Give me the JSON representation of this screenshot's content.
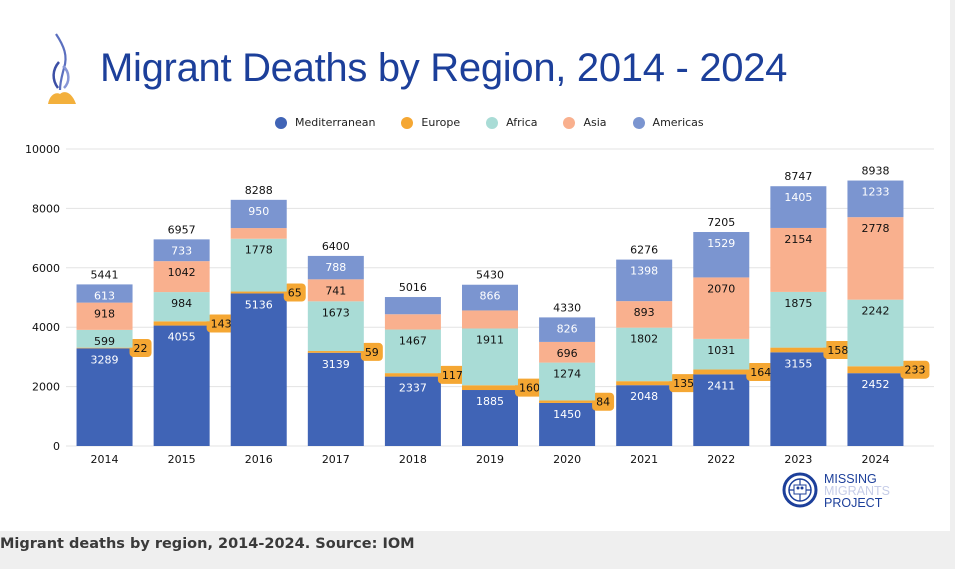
{
  "caption": "Migrant deaths by region, 2014-2024. Source: IOM",
  "logo": {
    "name": "MISSING MIGRANTS PROJECT",
    "lines": [
      "MISSING",
      "MIGRANTS",
      "PROJECT"
    ]
  },
  "colors": {
    "Mediterranean": "#4064b6",
    "Europe": "#f5a733",
    "Africa": "#a9dcd6",
    "Asia": "#f9b08e",
    "Americas": "#7b95d0",
    "title": "#1c3f9a"
  },
  "chart_data": {
    "type": "bar",
    "stacked": true,
    "title": "Migrant Deaths by Region, 2014 - 2024",
    "xlabel": "",
    "ylabel": "",
    "ylim": [
      0,
      10000
    ],
    "yticks": [
      0,
      2000,
      4000,
      6000,
      8000,
      10000
    ],
    "grid": true,
    "legend_position": "top-center",
    "categories": [
      "2014",
      "2015",
      "2016",
      "2017",
      "2018",
      "2019",
      "2020",
      "2021",
      "2022",
      "2023",
      "2024"
    ],
    "series": [
      {
        "name": "Mediterranean",
        "values": [
          3289,
          4055,
          5136,
          3139,
          2337,
          1885,
          1450,
          2048,
          2411,
          3155,
          2452
        ]
      },
      {
        "name": "Europe",
        "values": [
          22,
          143,
          65,
          59,
          117,
          160,
          84,
          135,
          164,
          158,
          233
        ]
      },
      {
        "name": "Africa",
        "values": [
          599,
          984,
          1778,
          1673,
          1467,
          1911,
          1274,
          1802,
          1031,
          1875,
          2242
        ]
      },
      {
        "name": "Asia",
        "values": [
          918,
          1042,
          359,
          741,
          515,
          608,
          696,
          893,
          2070,
          2154,
          2778
        ]
      },
      {
        "name": "Americas",
        "values": [
          613,
          733,
          950,
          788,
          580,
          866,
          826,
          1398,
          1529,
          1405,
          1233
        ]
      }
    ],
    "labeled": {
      "Asia": [
        true,
        true,
        false,
        true,
        false,
        false,
        true,
        true,
        true,
        true,
        true
      ],
      "Americas": [
        true,
        true,
        true,
        true,
        false,
        true,
        true,
        true,
        true,
        true,
        true
      ]
    },
    "totals": [
      5441,
      6957,
      8288,
      6400,
      5016,
      5430,
      4330,
      6276,
      7205,
      8747,
      8938
    ]
  }
}
